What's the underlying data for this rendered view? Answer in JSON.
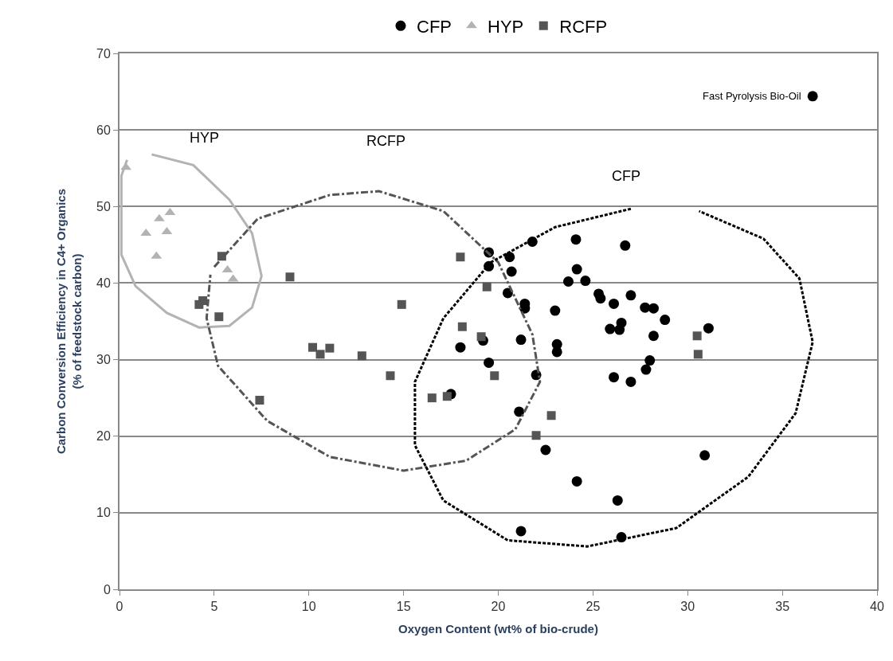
{
  "chart_data": {
    "type": "scatter",
    "xlabel": "Oxygen Content (wt% of bio-crude)",
    "ylabel": "Carbon Conversion Efficiency in C4+ Organics (% of feedstock carbon)",
    "xlim": [
      0,
      40
    ],
    "xticks": [
      0,
      5,
      10,
      15,
      20,
      25,
      30,
      35,
      40
    ],
    "ylim": [
      0,
      70
    ],
    "yticks": [
      0,
      10,
      20,
      30,
      40,
      50,
      60,
      70
    ],
    "grid": "y",
    "legend": "top",
    "series": [
      {
        "name": "CFP",
        "color": "#000000",
        "marker": "circle",
        "x": [
          21.8,
          24.1,
          26.7,
          19.5,
          19.5,
          20.6,
          20.7,
          24.15,
          23.7,
          24.6,
          20.5,
          25.3,
          25.4,
          26.1,
          27.0,
          21.4,
          21.4,
          23.0,
          26.5,
          25.9,
          26.4,
          21.2,
          18.0,
          19.2,
          23.1,
          23.1,
          19.5,
          26.1,
          27.0,
          22.0,
          17.5,
          21.1,
          22.5,
          31.1,
          28.2,
          28.0,
          27.8,
          28.8,
          27.75,
          28.2,
          30.9,
          24.15,
          26.3,
          21.2,
          26.5
        ],
        "values": [
          45.4,
          45.7,
          44.9,
          44.0,
          42.2,
          43.4,
          41.5,
          41.8,
          40.2,
          40.3,
          38.7,
          38.6,
          38.0,
          37.3,
          38.4,
          37.3,
          36.7,
          36.4,
          34.8,
          34.0,
          33.9,
          32.6,
          31.6,
          32.5,
          32.0,
          31.0,
          29.6,
          27.7,
          27.1,
          28.0,
          25.5,
          23.2,
          18.2,
          34.1,
          33.1,
          29.9,
          28.7,
          35.2,
          36.8,
          36.7,
          17.5,
          14.1,
          11.6,
          7.6,
          6.8
        ]
      },
      {
        "name": "HYP",
        "color": "#b3b3b3",
        "marker": "triangle",
        "x": [
          0.34,
          2.67,
          2.1,
          1.4,
          2.5,
          1.95,
          5.7,
          6.0
        ],
        "values": [
          55.1,
          49.2,
          48.4,
          46.5,
          46.7,
          43.5,
          41.7,
          40.5
        ]
      },
      {
        "name": "RCFP",
        "color": "#555555",
        "marker": "square",
        "x": [
          5.4,
          9.0,
          4.4,
          4.2,
          5.25,
          10.2,
          10.6,
          11.1,
          12.8,
          14.3,
          7.4,
          18.0,
          14.9,
          19.4,
          18.1,
          19.1,
          19.8,
          16.5,
          17.3,
          22.8,
          22.0,
          30.5,
          30.55
        ],
        "values": [
          43.5,
          40.8,
          37.7,
          37.2,
          35.6,
          31.6,
          30.7,
          31.5,
          30.5,
          27.9,
          24.7,
          43.4,
          37.2,
          39.5,
          34.3,
          33.0,
          27.9,
          25.0,
          25.2,
          22.7,
          20.1,
          33.1,
          30.7
        ]
      },
      {
        "color": "#000000",
        "marker": "circle",
        "x": [
          36.6
        ],
        "values": [
          64.4
        ]
      },
      {
        "type": "line",
        "color": "#b3b3b3",
        "marker": "none",
        "line_style": "solid",
        "x": [
          1.7,
          3.9,
          5.8,
          7.0,
          7.5,
          7.0,
          5.8,
          4.2,
          2.5,
          0.85,
          0.1,
          0.1,
          0.4
        ],
        "values": [
          56.8,
          55.4,
          50.9,
          46.5,
          40.9,
          36.8,
          34.4,
          34.2,
          36.1,
          39.6,
          43.7,
          54,
          56.1
        ]
      },
      {
        "type": "line",
        "color": "#555555",
        "marker": "none",
        "line_style": "dashdot",
        "x": [
          5.0,
          7.3,
          11.1,
          13.7,
          17.1,
          20.0,
          21.8,
          22.2,
          20.9,
          18.3,
          15.0,
          11.1,
          7.8,
          5.2,
          4.6,
          4.8
        ],
        "values": [
          42.1,
          48.4,
          51.5,
          52.0,
          49.4,
          42.7,
          33.3,
          27.1,
          20.9,
          16.8,
          15.5,
          17.3,
          22.0,
          29.2,
          35.4,
          41.1
        ]
      },
      {
        "type": "line",
        "color": "#000000",
        "marker": "none",
        "line_style": "dotted",
        "x": [
          27.0,
          23.0,
          19.6,
          17.1,
          15.6,
          15.6,
          17.1,
          20.5,
          24.7,
          29.4,
          33.2,
          35.7,
          36.6,
          35.9,
          34.0,
          30.6
        ],
        "values": [
          49.7,
          47.3,
          42.7,
          35.4,
          27.1,
          18.8,
          11.6,
          6.4,
          5.6,
          8.0,
          14.7,
          23.0,
          32.3,
          40.6,
          45.8,
          49.4
        ]
      }
    ],
    "annotations": [
      {
        "text": "Fast Pyrolysis Bio-Oil",
        "x": 36.6,
        "y": 64.4
      },
      "HYP",
      "RCFP",
      "CFP"
    ]
  }
}
